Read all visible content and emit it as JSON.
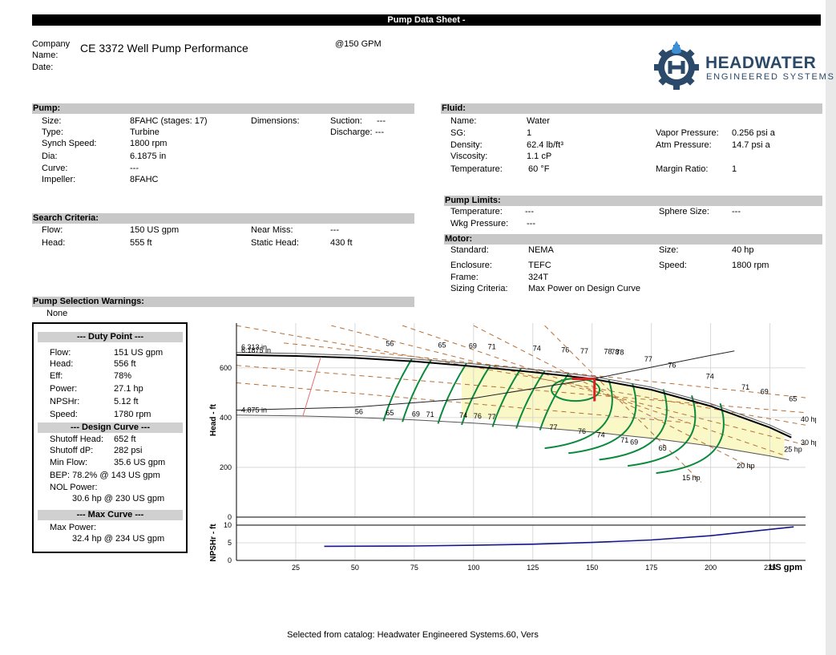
{
  "header": {
    "title": "Pump Data Sheet -"
  },
  "company": {
    "label": "Company Name:",
    "label_line1": "Company",
    "label_line2": "Name:",
    "value": "CE 3372 Well Pump Performance",
    "date_label": "Date:",
    "flow_note": "@150 GPM"
  },
  "logo": {
    "line1": "HEADWATER",
    "line2": "ENGINEERED SYSTEMS",
    "icon": "gear-h-logo-icon",
    "colors": {
      "blue": "#2b4a6a",
      "drop": "#3d8fd6"
    }
  },
  "pump": {
    "heading": "Pump:",
    "rows": [
      {
        "label": "Size:",
        "value": "8FAHC (stages:  17)"
      },
      {
        "label": "Type:",
        "value": "Turbine"
      },
      {
        "label": "Synch Speed:",
        "value": "1800 rpm"
      },
      {
        "label": "Dia:",
        "value": "6.1875 in"
      },
      {
        "label": "Curve:",
        "value": "---"
      },
      {
        "label": "Impeller:",
        "value": "8FAHC"
      }
    ],
    "dimensions_label": "Dimensions:",
    "suction_label": "Suction:",
    "suction_value": "---",
    "discharge_label": "Discharge:",
    "discharge_value": "---"
  },
  "search": {
    "heading": "Search Criteria:",
    "flow_label": "Flow:",
    "flow_value": "150 US gpm",
    "head_label": "Head:",
    "head_value": "555 ft",
    "near_miss_label": "Near Miss:",
    "near_miss_value": "---",
    "static_head_label": "Static Head:",
    "static_head_value": "430 ft"
  },
  "warnings": {
    "heading": "Pump Selection Warnings:",
    "value": "None"
  },
  "fluid": {
    "heading": "Fluid:",
    "rows": [
      {
        "label": "Name:",
        "value": "Water"
      },
      {
        "label": "SG:",
        "value": "1"
      },
      {
        "label": "Density:",
        "value": "62.4 lb/ft³"
      },
      {
        "label": "Viscosity:",
        "value": "1.1 cP"
      },
      {
        "label": "Temperature:",
        "value": "60 °F"
      }
    ],
    "vapor_label": "Vapor Pressure:",
    "vapor_value": "0.256 psi a",
    "atm_label": "Atm Pressure:",
    "atm_value": "14.7 psi a",
    "margin_label": "Margin Ratio:",
    "margin_value": "1"
  },
  "limits": {
    "heading": "Pump Limits:",
    "temp_label": "Temperature:",
    "temp_value": "---",
    "wkg_label": "Wkg Pressure:",
    "wkg_value": "---",
    "sphere_label": "Sphere Size:",
    "sphere_value": "---"
  },
  "motor": {
    "heading": "Motor:",
    "standard_label": "Standard:",
    "standard_value": "NEMA",
    "enclosure_label": "Enclosure:",
    "enclosure_value": "TEFC",
    "frame_label": "Frame:",
    "frame_value": "324T",
    "sizing_label": "Sizing Criteria:",
    "sizing_value": "Max Power on Design Curve",
    "size_label": "Size:",
    "size_value": "40 hp",
    "speed_label": "Speed:",
    "speed_value": "1800 rpm"
  },
  "duty": {
    "heading": "--- Duty Point ---",
    "rows": [
      {
        "label": "Flow:",
        "value": "151 US gpm"
      },
      {
        "label": "Head:",
        "value": "556 ft"
      },
      {
        "label": "Eff:",
        "value": "78%"
      },
      {
        "label": "Power:",
        "value": "27.1 hp"
      },
      {
        "label": "NPSHr:",
        "value": "5.12 ft"
      },
      {
        "label": "Speed:",
        "value": "1780 rpm"
      }
    ],
    "design_heading": "--- Design Curve ---",
    "shutoff_head_label": "Shutoff Head:",
    "shutoff_head_value": "652 ft",
    "shutoff_dp_label": "Shutoff dP:",
    "shutoff_dp_value": "282 psi",
    "min_flow_label": "Min Flow:",
    "min_flow_value": "35.6 US gpm",
    "bep_text": "BEP: 78.2% @ 143 US gpm",
    "nol_label": "NOL Power:",
    "nol_value": "30.6 hp @ 230 US gpm",
    "max_heading": "--- Max Curve ---",
    "max_power_label": "Max Power:",
    "max_power_value": "32.4 hp @ 234 US gpm"
  },
  "chart_data": {
    "type": "line",
    "xlabel": "US gpm",
    "ylabel_head": "Head - ft",
    "ylabel_npsh": "NPSHr - ft",
    "xlim": [
      0,
      240
    ],
    "head_ylim": [
      0,
      780
    ],
    "npsh_ylim": [
      0,
      10
    ],
    "xticks": [
      25,
      50,
      75,
      100,
      125,
      150,
      175,
      200,
      225
    ],
    "head_yticks": [
      0,
      200,
      400,
      600
    ],
    "npsh_yticks": [
      0,
      5,
      10
    ],
    "diameter_labels": [
      "6.313 in",
      "6.1875 in",
      "4.875 in"
    ],
    "design_curve": {
      "x": [
        0,
        25,
        50,
        75,
        100,
        125,
        150,
        175,
        200,
        225,
        234
      ],
      "y": [
        652,
        648,
        640,
        626,
        606,
        583,
        556,
        512,
        446,
        360,
        320
      ]
    },
    "max_curve": {
      "x": [
        0,
        25,
        50,
        75,
        100,
        125,
        150,
        175,
        200,
        225,
        234
      ],
      "y": [
        662,
        658,
        650,
        636,
        616,
        593,
        566,
        522,
        456,
        370,
        330
      ]
    },
    "min_curve": {
      "x": [
        0,
        25,
        50,
        75,
        100,
        125,
        150,
        175,
        200,
        225,
        233
      ],
      "y": [
        410,
        407,
        401,
        391,
        378,
        362,
        342,
        317,
        286,
        246,
        230
      ]
    },
    "system_curve": {
      "x": [
        0,
        50,
        100,
        150,
        200,
        210
      ],
      "y": [
        430,
        442,
        478,
        555,
        650,
        668
      ]
    },
    "npshr_curve": {
      "x": [
        37,
        75,
        100,
        125,
        150,
        175,
        200,
        225,
        235
      ],
      "y": [
        4.0,
        4.1,
        4.3,
        4.6,
        5.1,
        5.8,
        7.0,
        8.8,
        9.5
      ]
    },
    "duty_point": {
      "x": 151,
      "y": 556
    },
    "efficiency_labels_top": [
      "56",
      "65",
      "69",
      "71",
      "74",
      "76",
      "77",
      "78",
      "78",
      "78",
      "77",
      "76",
      "74",
      "71",
      "69",
      "65"
    ],
    "efficiency_labels_bottom": [
      "56",
      "65",
      "69",
      "71",
      "74",
      "76",
      "77",
      "77",
      "76",
      "74",
      "71",
      "69",
      "65"
    ],
    "power_labels": [
      "15 hp",
      "20 hp",
      "25 hp",
      "30 hp",
      "40 hp"
    ],
    "colors": {
      "head": "#000000",
      "efficiency": "#0b8a3e",
      "power": "#b86f35",
      "npsh": "#15168a",
      "region": "#fbf8c8",
      "duty": "#e02020"
    }
  },
  "footer": {
    "text": "Selected from catalog: Headwater Engineered Systems.60, Vers"
  }
}
